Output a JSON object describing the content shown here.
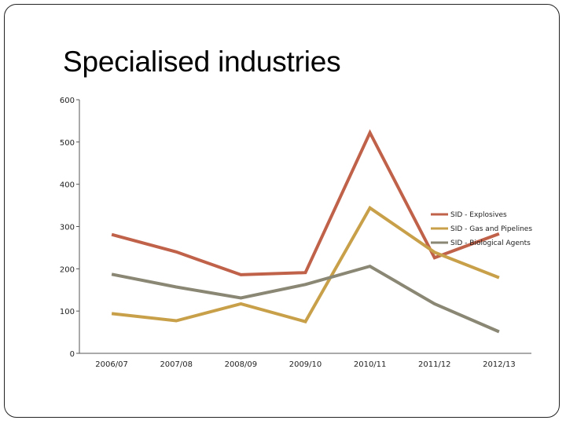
{
  "slide": {
    "title": "Specialised industries"
  },
  "chart_data": {
    "type": "line",
    "title": "",
    "xlabel": "",
    "ylabel": "",
    "categories": [
      "2006/07",
      "2007/08",
      "2008/09",
      "2009/10",
      "2010/11",
      "2011/12",
      "2012/13"
    ],
    "ylim": [
      0,
      600
    ],
    "yticks": [
      "0",
      "100",
      "200",
      "300",
      "400",
      "500",
      "600"
    ],
    "grid": false,
    "legend_position": "right",
    "series": [
      {
        "name": "SID - Explosives",
        "color": "#c0614a",
        "values": [
          281,
          240,
          186,
          191,
          522,
          226,
          283
        ]
      },
      {
        "name": "SID - Gas and Pipelines",
        "color": "#c9a04a",
        "values": [
          94,
          77,
          117,
          75,
          344,
          239,
          179
        ]
      },
      {
        "name": "SID - Biological Agents",
        "color": "#8a8774",
        "values": [
          187,
          157,
          131,
          163,
          206,
          117,
          51
        ]
      }
    ]
  }
}
